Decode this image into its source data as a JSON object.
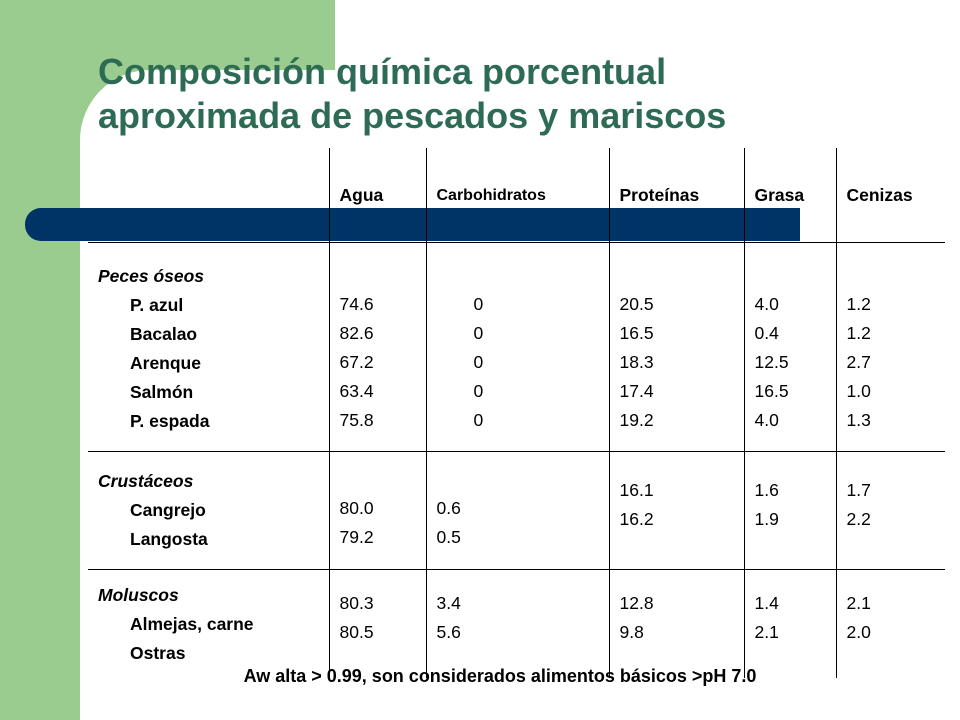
{
  "title": {
    "line1": "Composición química porcentual",
    "line2": "aproximada de pescados y mariscos"
  },
  "table": {
    "headers": [
      "",
      "Agua",
      "Carbohidratos",
      "Proteínas",
      "Grasa",
      "Cenizas"
    ],
    "groups": [
      {
        "name": "Peces óseos",
        "items": [
          "P. azul",
          "Bacalao",
          "Arenque",
          "Salmón",
          "P. espada"
        ],
        "agua": [
          "74.6",
          "82.6",
          "67.2",
          "63.4",
          "75.8"
        ],
        "carbohidratos": [
          "0",
          "0",
          "0",
          "0",
          "0"
        ],
        "proteinas": [
          "20.5",
          "16.5",
          "18.3",
          "17.4",
          "19.2"
        ],
        "grasa": [
          "4.0",
          "0.4",
          "12.5",
          "16.5",
          "4.0"
        ],
        "cenizas": [
          "1.2",
          "1.2",
          "2.7",
          "1.0",
          "1.3"
        ]
      },
      {
        "name": "Crustáceos",
        "items": [
          "Cangrejo",
          "Langosta"
        ],
        "agua": [
          "80.0",
          "79.2"
        ],
        "carbohidratos": [
          "0.6",
          "0.5"
        ],
        "proteinas": [
          "16.1",
          "16.2"
        ],
        "grasa": [
          "1.6",
          "1.9"
        ],
        "cenizas": [
          "1.7",
          "2.2"
        ]
      },
      {
        "name": "Moluscos",
        "items": [
          "Almejas, carne",
          "Ostras"
        ],
        "agua": [
          "80.3",
          "80.5"
        ],
        "carbohidratos": [
          "3.4",
          "5.6"
        ],
        "proteinas": [
          "12.8",
          "9.8"
        ],
        "grasa": [
          "1.4",
          "2.1"
        ],
        "cenizas": [
          "2.1",
          "2.0"
        ]
      }
    ]
  },
  "footnote": "Aw alta > 0.99, son considerados alimentos básicos >pH 7.0",
  "colors": {
    "sidebar_green": "#9bcc8f",
    "band_navy": "#003366",
    "title_green": "#2e6b55"
  }
}
